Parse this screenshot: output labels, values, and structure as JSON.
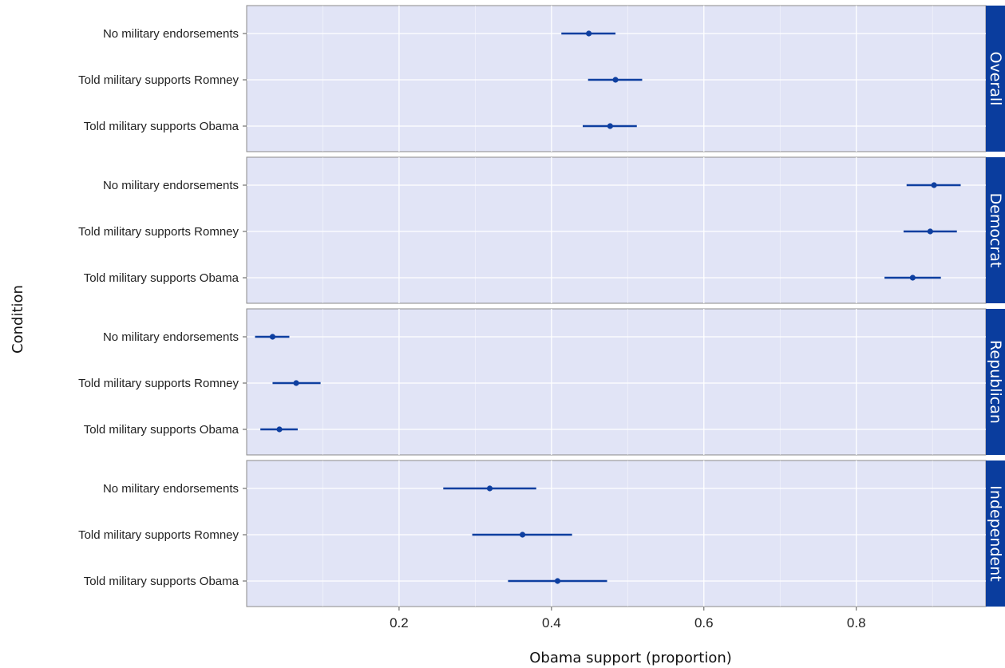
{
  "chart_data": {
    "type": "dot-errorbar",
    "title": "",
    "xlabel": "Obama support (proportion)",
    "ylabel": "Condition",
    "xlim": [
      0.0,
      0.97
    ],
    "xticks": [
      0.2,
      0.4,
      0.6,
      0.8
    ],
    "xtick_labels": [
      "0.2",
      "0.4",
      "0.6",
      "0.8"
    ],
    "conditions": [
      "No military endorsements",
      "Told military supports Romney",
      "Told military supports Obama"
    ],
    "grid": true,
    "colors": {
      "panel_bg": "#e1e4f6",
      "strip_bg": "#0a3d9e",
      "point": "#0e3fa0",
      "grid": "#ffffff"
    },
    "panels": [
      {
        "name": "Overall",
        "points": [
          {
            "condition": "No military endorsements",
            "value": 0.449,
            "lower": 0.413,
            "upper": 0.484
          },
          {
            "condition": "Told military supports Romney",
            "value": 0.484,
            "lower": 0.448,
            "upper": 0.519
          },
          {
            "condition": "Told military supports Obama",
            "value": 0.477,
            "lower": 0.441,
            "upper": 0.512
          }
        ]
      },
      {
        "name": "Democrat",
        "points": [
          {
            "condition": "No military endorsements",
            "value": 0.902,
            "lower": 0.866,
            "upper": 0.937
          },
          {
            "condition": "Told military supports Romney",
            "value": 0.897,
            "lower": 0.862,
            "upper": 0.932
          },
          {
            "condition": "Told military supports Obama",
            "value": 0.874,
            "lower": 0.837,
            "upper": 0.911
          }
        ]
      },
      {
        "name": "Republican",
        "points": [
          {
            "condition": "No military endorsements",
            "value": 0.034,
            "lower": 0.011,
            "upper": 0.056
          },
          {
            "condition": "Told military supports Romney",
            "value": 0.065,
            "lower": 0.034,
            "upper": 0.097
          },
          {
            "condition": "Told military supports Obama",
            "value": 0.043,
            "lower": 0.018,
            "upper": 0.067
          }
        ]
      },
      {
        "name": "Independent",
        "points": [
          {
            "condition": "No military endorsements",
            "value": 0.319,
            "lower": 0.258,
            "upper": 0.38
          },
          {
            "condition": "Told military supports Romney",
            "value": 0.362,
            "lower": 0.296,
            "upper": 0.427
          },
          {
            "condition": "Told military supports Obama",
            "value": 0.408,
            "lower": 0.343,
            "upper": 0.473
          }
        ]
      }
    ]
  }
}
